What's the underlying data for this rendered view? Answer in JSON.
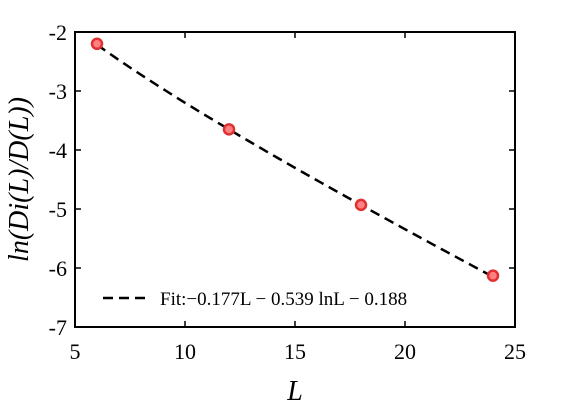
{
  "chart_data": {
    "type": "scatter",
    "x": [
      6,
      12,
      18,
      24
    ],
    "y": [
      -2.2,
      -3.65,
      -4.93,
      -6.13
    ],
    "xlim": [
      5,
      25
    ],
    "ylim": [
      -7,
      -2
    ],
    "xticks": [
      5,
      10,
      15,
      20,
      25
    ],
    "yticks": [
      -2,
      -3,
      -4,
      -5,
      -6,
      -7
    ],
    "xtick_labels": [
      "5",
      "10",
      "15",
      "20",
      "25"
    ],
    "ytick_labels": [
      "-2",
      "-3",
      "-4",
      "-5",
      "-6",
      "-7"
    ],
    "xlabel": "L",
    "ylabel": "ln(D_i(L)/D(L))",
    "ylabel_display": "ln(Di(L)/D(L))",
    "grid": false,
    "legend_position": "bottom",
    "fit": {
      "label": "Fit:−0.177L − 0.539 lnL − 0.188",
      "coefficients": {
        "linear": -0.177,
        "log": -0.539,
        "constant": -0.188
      }
    },
    "colors": {
      "marker_edge": "#e03030",
      "marker_fill": "#ff8080",
      "fit_line": "#000000",
      "axes": "#000000"
    }
  }
}
